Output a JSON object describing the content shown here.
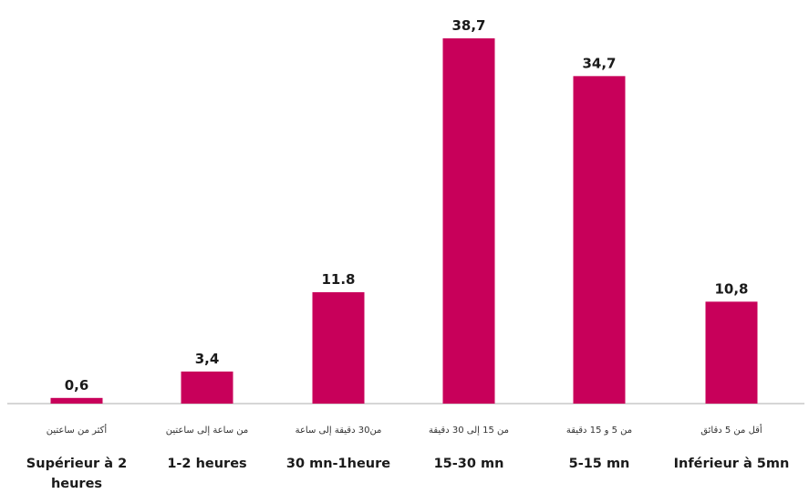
{
  "chart_data": {
    "type": "bar",
    "categories_fr": [
      "Supérieur à 2 heures",
      "1-2 heures",
      "30 mn-1heure",
      "15-30 mn",
      "5-15 mn",
      "Inférieur à 5mn"
    ],
    "categories_ar": [
      "أكثر من ساعتين",
      "من ساعة إلى ساعتين",
      "من30 دقيقة إلى ساعة",
      "من 15 إلى 30 دقيقة",
      "من 5 و 15 دقيقة",
      "أقل من 5 دقائق"
    ],
    "values": [
      0.6,
      3.4,
      11.8,
      38.7,
      34.7,
      10.8
    ],
    "value_labels": [
      "0,6",
      "3,4",
      "11.8",
      "38,7",
      "34,7",
      "10,8"
    ],
    "bar_color": "#c8005a",
    "axis_color": "#bdbdbd",
    "ylim": [
      0,
      38.7
    ]
  }
}
